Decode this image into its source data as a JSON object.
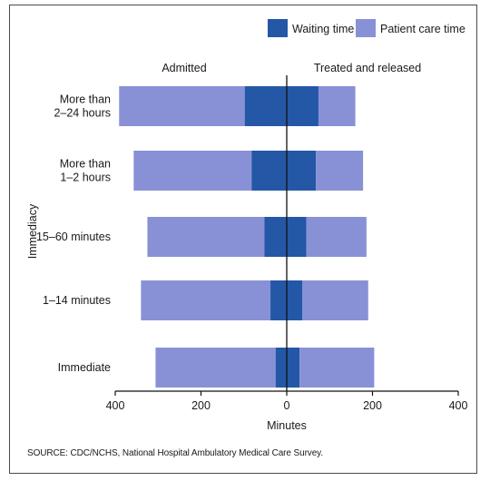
{
  "chart_data": {
    "type": "bar",
    "orientation": "horizontal-diverging",
    "xlabel": "Minutes",
    "ylabel": "Immediacy",
    "xlim": [
      -400,
      400
    ],
    "xticks": [
      -400,
      -200,
      0,
      200,
      400
    ],
    "xtick_labels": [
      "400",
      "200",
      "0",
      "200",
      "400"
    ],
    "panel_labels": {
      "left": "Admitted",
      "right": "Treated and released"
    },
    "categories": [
      [
        "More than",
        "2–24 hours"
      ],
      [
        "More than",
        "1–2 hours"
      ],
      [
        "15–60 minutes"
      ],
      [
        "1–14 minutes"
      ],
      [
        "Immediate"
      ]
    ],
    "series": [
      {
        "name": "Waiting time",
        "color": "#2457a6",
        "admitted": [
          98,
          82,
          52,
          38,
          26
        ],
        "treated_and_released": [
          74,
          68,
          46,
          36,
          30
        ]
      },
      {
        "name": "Patient care time",
        "color": "#8891d6",
        "admitted": [
          293,
          275,
          273,
          302,
          280
        ],
        "treated_and_released": [
          86,
          110,
          140,
          154,
          174
        ]
      }
    ],
    "legend_position": "top-right",
    "grid": false
  },
  "source": "SOURCE: CDC/NCHS, National Hospital Ambulatory Medical Care Survey."
}
